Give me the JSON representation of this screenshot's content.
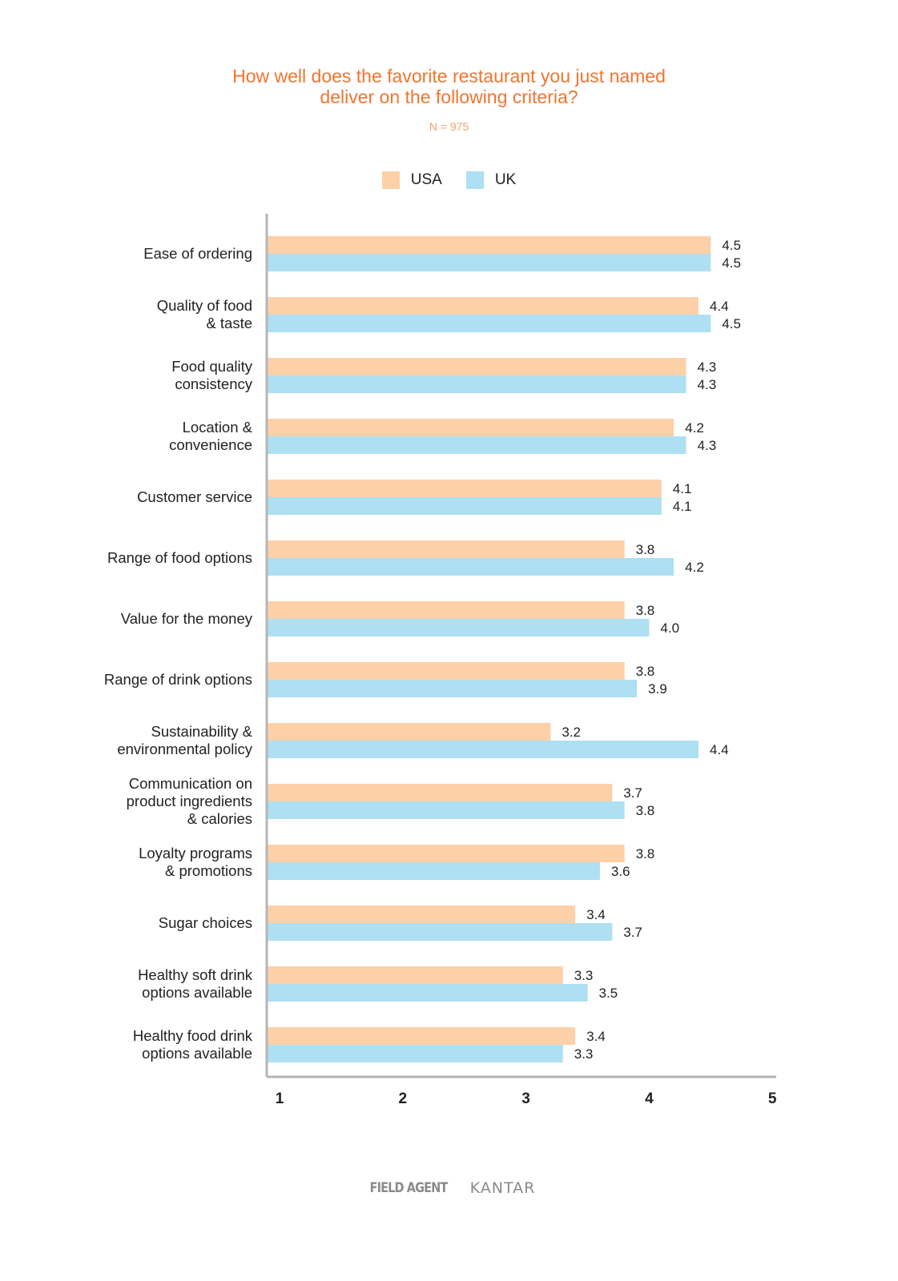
{
  "chart_data": {
    "type": "bar",
    "orientation": "horizontal",
    "title": "How well does the favorite restaurant you just named\ndeliver on the following criteria?",
    "subtitle": "N = 975",
    "categories": [
      "Ease of ordering",
      "Quality of food\n& taste",
      "Food quality\nconsistency",
      "Location &\nconvenience",
      "Customer service",
      "Range of food options",
      "Value for the money",
      "Range of drink options",
      "Sustainability &\nenvironmental policy",
      "Communication on\nproduct ingredients\n& calories",
      "Loyalty programs\n& promotions",
      "Sugar choices",
      "Healthy soft drink\noptions available",
      "Healthy food drink\noptions available"
    ],
    "series": [
      {
        "name": "USA",
        "color": "#fdd0a8",
        "values": [
          4.5,
          4.4,
          4.3,
          4.2,
          4.1,
          3.8,
          3.8,
          3.8,
          3.2,
          3.7,
          3.8,
          3.4,
          3.3,
          3.4
        ],
        "labels": [
          "4.5",
          "4.4",
          "4.3",
          "4.2",
          "4.1",
          "3.8",
          "3.8",
          "3.8",
          "3.2",
          "3.7",
          "3.8",
          "3.4",
          "3.3",
          "3.4"
        ]
      },
      {
        "name": "UK",
        "color": "#aedff2",
        "values": [
          4.5,
          4.5,
          4.3,
          4.3,
          4.1,
          4.2,
          4.0,
          3.9,
          4.4,
          3.8,
          3.6,
          3.7,
          3.5,
          3.3
        ],
        "labels": [
          "4.5",
          "4.5",
          "4.3",
          "4.3",
          "4.1",
          "4.2",
          "4.0",
          "3.9",
          "4.4",
          "3.8",
          "3.6",
          "3.7",
          "3.5",
          "3.3"
        ]
      }
    ],
    "xlim": [
      1,
      5
    ],
    "xticks": [
      "1",
      "2",
      "3",
      "4",
      "5"
    ],
    "grid": false,
    "legend_position": "top-center"
  },
  "footer": {
    "logo_left": "FIELD AGENT",
    "logo_right": "KANTAR"
  }
}
